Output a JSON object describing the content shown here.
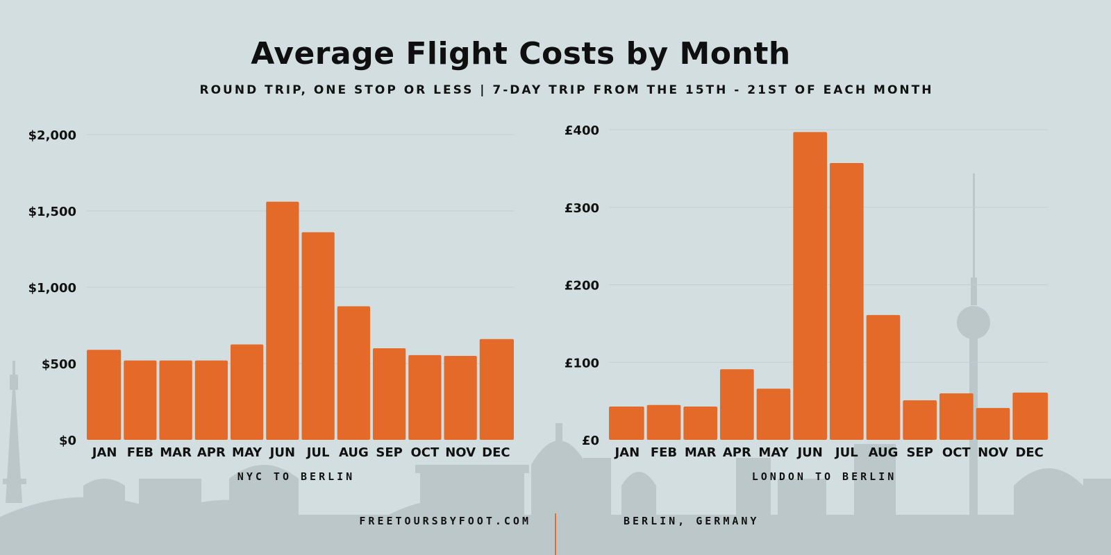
{
  "title": "Average Flight Costs by Month",
  "subtitle": "ROUND TRIP, ONE STOP OR LESS | 7-DAY TRIP FROM THE 15TH - 21ST OF EACH MONTH",
  "footer": {
    "website": "FREETOURSBYFOOT.COM",
    "location": "BERLIN, GERMANY"
  },
  "colors": {
    "background": "#d3dee1",
    "bar": "#e36a29",
    "gridline": "#c3cdd0",
    "skyline": "#bcc7ca",
    "divider": "#e07030"
  },
  "chart_data": [
    {
      "type": "bar",
      "title": "NYC TO BERLIN",
      "xlabel": "NYC TO BERLIN",
      "ylabel": "",
      "categories": [
        "JAN",
        "FEB",
        "MAR",
        "APR",
        "MAY",
        "JUN",
        "JUL",
        "AUG",
        "SEP",
        "OCT",
        "NOV",
        "DEC"
      ],
      "values": [
        590,
        520,
        520,
        520,
        625,
        1560,
        1360,
        875,
        600,
        555,
        550,
        660
      ],
      "yticks": [
        0,
        500,
        1000,
        1500,
        2000
      ],
      "ytick_labels": [
        "$0",
        "$500",
        "$1,000",
        "$1,500",
        "$2,000"
      ],
      "ylim": [
        0,
        2000
      ],
      "grid": true
    },
    {
      "type": "bar",
      "title": "LONDON TO BERLIN",
      "xlabel": "LONDON TO BERLIN",
      "ylabel": "",
      "categories": [
        "JAN",
        "FEB",
        "MAR",
        "APR",
        "MAY",
        "JUN",
        "JUL",
        "AUG",
        "SEP",
        "OCT",
        "NOV",
        "DEC"
      ],
      "values": [
        43,
        45,
        43,
        91,
        66,
        397,
        357,
        161,
        51,
        60,
        41,
        61
      ],
      "yticks": [
        0,
        100,
        200,
        300,
        400
      ],
      "ytick_labels": [
        "£0",
        "£100",
        "£200",
        "£300",
        "£400"
      ],
      "ylim": [
        0,
        400
      ],
      "grid": true
    }
  ]
}
